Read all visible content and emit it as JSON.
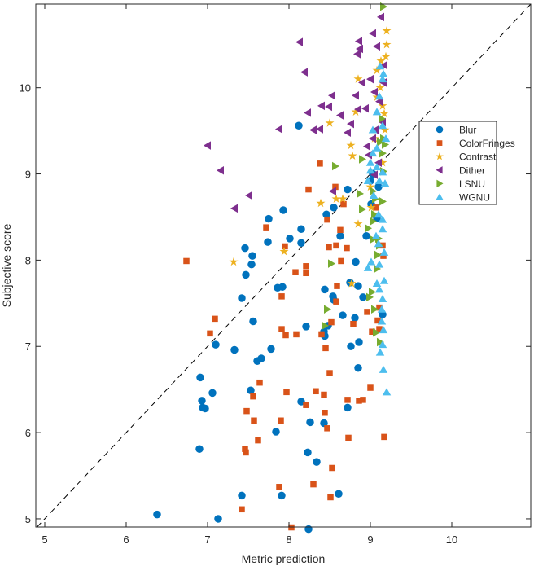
{
  "chart_data": {
    "type": "scatter",
    "title": "",
    "xlabel": "Metric prediction",
    "ylabel": "Subjective score",
    "xlim": [
      4.89,
      10.97
    ],
    "ylim": [
      4.905,
      10.97
    ],
    "xticks": [
      5,
      6,
      7,
      8,
      9,
      10
    ],
    "yticks": [
      5,
      6,
      7,
      8,
      9,
      10
    ],
    "grid": false,
    "legend_position": "right",
    "reference_line": {
      "type": "identity",
      "style": "dashed",
      "color": "#000000"
    },
    "series": [
      {
        "name": "Blur",
        "marker": "circle",
        "color": "#0072BD",
        "points": [
          [
            6.38,
            5.05
          ],
          [
            7.13,
            5.0
          ],
          [
            7.42,
            5.27
          ],
          [
            7.91,
            5.27
          ],
          [
            8.24,
            4.88
          ],
          [
            8.61,
            5.29
          ],
          [
            6.9,
            5.81
          ],
          [
            7.84,
            6.01
          ],
          [
            8.23,
            5.77
          ],
          [
            8.34,
            5.66
          ],
          [
            6.93,
            6.37
          ],
          [
            6.94,
            6.29
          ],
          [
            6.97,
            6.28
          ],
          [
            7.06,
            6.46
          ],
          [
            6.91,
            6.64
          ],
          [
            7.33,
            6.96
          ],
          [
            7.1,
            7.02
          ],
          [
            7.61,
            6.83
          ],
          [
            7.66,
            6.86
          ],
          [
            7.78,
            6.97
          ],
          [
            7.53,
            6.49
          ],
          [
            8.15,
            6.36
          ],
          [
            8.26,
            6.12
          ],
          [
            8.43,
            6.11
          ],
          [
            8.72,
            6.29
          ],
          [
            8.85,
            6.75
          ],
          [
            8.86,
            7.05
          ],
          [
            7.42,
            7.56
          ],
          [
            7.56,
            7.29
          ],
          [
            7.47,
            7.83
          ],
          [
            7.54,
            7.95
          ],
          [
            7.55,
            8.05
          ],
          [
            7.46,
            8.14
          ],
          [
            7.74,
            8.21
          ],
          [
            7.75,
            8.48
          ],
          [
            7.93,
            8.58
          ],
          [
            8.01,
            8.25
          ],
          [
            8.15,
            8.36
          ],
          [
            8.15,
            8.2
          ],
          [
            7.86,
            7.68
          ],
          [
            7.92,
            7.69
          ],
          [
            8.12,
            9.56
          ],
          [
            8.21,
            7.23
          ],
          [
            8.43,
            7.17
          ],
          [
            8.44,
            7.12
          ],
          [
            8.48,
            7.24
          ],
          [
            8.44,
            7.66
          ],
          [
            8.54,
            7.58
          ],
          [
            8.55,
            7.54
          ],
          [
            8.46,
            8.53
          ],
          [
            8.55,
            8.61
          ],
          [
            8.63,
            8.28
          ],
          [
            8.66,
            7.36
          ],
          [
            8.75,
            7.74
          ],
          [
            8.72,
            8.82
          ],
          [
            8.76,
            7.0
          ],
          [
            8.81,
            7.33
          ],
          [
            8.82,
            7.98
          ],
          [
            8.85,
            7.7
          ],
          [
            8.91,
            7.57
          ],
          [
            8.95,
            8.28
          ],
          [
            9.01,
            8.65
          ],
          [
            9.03,
            9.0
          ],
          [
            9.0,
            8.92
          ],
          [
            9.15,
            7.37
          ],
          [
            9.08,
            8.49
          ],
          [
            9.1,
            8.85
          ]
        ]
      },
      {
        "name": "ColorFringes",
        "marker": "square",
        "color": "#D95319",
        "points": [
          [
            6.74,
            7.99
          ],
          [
            7.09,
            7.32
          ],
          [
            7.03,
            7.15
          ],
          [
            7.46,
            5.81
          ],
          [
            7.47,
            5.77
          ],
          [
            7.42,
            5.11
          ],
          [
            7.48,
            6.25
          ],
          [
            7.57,
            6.14
          ],
          [
            7.62,
            5.91
          ],
          [
            7.64,
            6.58
          ],
          [
            7.56,
            6.42
          ],
          [
            7.72,
            8.38
          ],
          [
            7.91,
            7.2
          ],
          [
            7.91,
            7.58
          ],
          [
            7.9,
            6.14
          ],
          [
            7.88,
            5.37
          ],
          [
            8.03,
            4.9
          ],
          [
            7.95,
            8.16
          ],
          [
            7.97,
            6.47
          ],
          [
            7.96,
            7.13
          ],
          [
            8.09,
            7.14
          ],
          [
            8.08,
            7.86
          ],
          [
            8.21,
            7.85
          ],
          [
            8.21,
            7.93
          ],
          [
            8.24,
            8.82
          ],
          [
            8.21,
            6.32
          ],
          [
            8.33,
            6.48
          ],
          [
            8.3,
            5.4
          ],
          [
            8.38,
            9.12
          ],
          [
            8.4,
            7.14
          ],
          [
            8.45,
            6.98
          ],
          [
            8.43,
            6.44
          ],
          [
            8.44,
            6.23
          ],
          [
            8.47,
            6.05
          ],
          [
            8.5,
            6.69
          ],
          [
            8.49,
            8.15
          ],
          [
            8.52,
            7.28
          ],
          [
            8.47,
            8.47
          ],
          [
            8.53,
            5.59
          ],
          [
            8.51,
            5.25
          ],
          [
            8.58,
            8.17
          ],
          [
            8.59,
            7.7
          ],
          [
            8.58,
            7.52
          ],
          [
            8.57,
            8.85
          ],
          [
            8.64,
            7.99
          ],
          [
            8.63,
            8.35
          ],
          [
            8.67,
            8.65
          ],
          [
            8.71,
            8.14
          ],
          [
            8.73,
            5.94
          ],
          [
            8.72,
            6.38
          ],
          [
            8.79,
            7.26
          ],
          [
            8.86,
            6.37
          ],
          [
            8.91,
            6.38
          ],
          [
            8.96,
            7.4
          ],
          [
            9.0,
            6.52
          ],
          [
            9.02,
            7.17
          ],
          [
            9.09,
            7.3
          ],
          [
            9.11,
            7.45
          ],
          [
            9.11,
            7.2
          ],
          [
            9.16,
            8.05
          ],
          [
            9.17,
            5.95
          ],
          [
            9.15,
            8.17
          ],
          [
            9.07,
            8.61
          ]
        ]
      },
      {
        "name": "Contrast",
        "marker": "star",
        "color": "#EDB120",
        "points": [
          [
            7.32,
            7.98
          ],
          [
            7.94,
            8.1
          ],
          [
            8.39,
            8.66
          ],
          [
            8.5,
            9.59
          ],
          [
            8.58,
            8.71
          ],
          [
            8.66,
            8.71
          ],
          [
            8.76,
            9.33
          ],
          [
            8.78,
            9.21
          ],
          [
            8.82,
            9.72
          ],
          [
            8.85,
            10.1
          ],
          [
            8.85,
            8.42
          ],
          [
            8.77,
            7.73
          ],
          [
            9.05,
            9.41
          ],
          [
            9.08,
            10.2
          ],
          [
            9.08,
            9.89
          ],
          [
            9.13,
            10.31
          ],
          [
            9.2,
            10.66
          ],
          [
            9.15,
            9.79
          ],
          [
            9.19,
            10.36
          ],
          [
            9.2,
            10.5
          ],
          [
            9.12,
            10.0
          ],
          [
            9.0,
            8.85
          ],
          [
            9.01,
            8.61
          ],
          [
            9.17,
            9.7
          ],
          [
            9.18,
            9.51
          ],
          [
            9.15,
            9.13
          ]
        ]
      },
      {
        "name": "Dither",
        "marker": "triangle-left",
        "color": "#7E2F8E",
        "points": [
          [
            7.0,
            9.33
          ],
          [
            7.16,
            9.04
          ],
          [
            7.51,
            8.75
          ],
          [
            7.33,
            8.6
          ],
          [
            7.88,
            9.52
          ],
          [
            8.13,
            10.53
          ],
          [
            8.19,
            10.18
          ],
          [
            8.23,
            9.71
          ],
          [
            8.3,
            9.51
          ],
          [
            8.38,
            9.52
          ],
          [
            8.4,
            9.79
          ],
          [
            8.49,
            9.78
          ],
          [
            8.54,
            8.8
          ],
          [
            8.53,
            9.91
          ],
          [
            8.63,
            9.68
          ],
          [
            8.72,
            9.48
          ],
          [
            8.76,
            9.58
          ],
          [
            8.84,
            10.39
          ],
          [
            8.87,
            10.45
          ],
          [
            8.86,
            10.54
          ],
          [
            8.82,
            9.91
          ],
          [
            8.85,
            9.75
          ],
          [
            8.9,
            10.06
          ],
          [
            8.94,
            9.76
          ],
          [
            8.96,
            9.32
          ],
          [
            9.0,
            10.1
          ],
          [
            9.03,
            10.63
          ],
          [
            9.08,
            10.48
          ],
          [
            9.13,
            10.82
          ],
          [
            9.05,
            9.95
          ],
          [
            9.11,
            9.84
          ],
          [
            9.15,
            9.6
          ],
          [
            9.17,
            10.26
          ],
          [
            9.1,
            9.13
          ],
          [
            8.98,
            9.22
          ],
          [
            9.03,
            9.41
          ],
          [
            9.05,
            8.99
          ],
          [
            9.06,
            9.51
          ],
          [
            9.16,
            10.06
          ]
        ]
      },
      {
        "name": "LSNU",
        "marker": "triangle-right",
        "color": "#77AC30",
        "points": [
          [
            9.16,
            10.94
          ],
          [
            8.52,
            7.96
          ],
          [
            8.57,
            9.09
          ],
          [
            8.47,
            7.43
          ],
          [
            8.44,
            7.24
          ],
          [
            8.9,
            9.17
          ],
          [
            8.87,
            8.77
          ],
          [
            8.9,
            8.59
          ],
          [
            9.03,
            8.8
          ],
          [
            9.05,
            8.53
          ],
          [
            9.03,
            8.45
          ],
          [
            9.03,
            8.24
          ],
          [
            9.08,
            7.9
          ],
          [
            9.02,
            7.63
          ],
          [
            9.05,
            7.43
          ],
          [
            9.07,
            7.16
          ],
          [
            9.12,
            7.05
          ],
          [
            9.09,
            8.06
          ],
          [
            9.1,
            8.25
          ],
          [
            9.11,
            8.17
          ],
          [
            9.14,
            9.64
          ],
          [
            9.16,
            9.41
          ],
          [
            9.12,
            9.37
          ],
          [
            9.18,
            9.34
          ],
          [
            9.15,
            9.24
          ],
          [
            9.16,
            9.03
          ],
          [
            8.97,
            8.37
          ],
          [
            8.99,
            7.57
          ],
          [
            9.15,
            8.68
          ],
          [
            9.06,
            8.71
          ]
        ]
      },
      {
        "name": "WGNU",
        "marker": "triangle-up",
        "color": "#4DBEEE",
        "points": [
          [
            9.2,
            6.47
          ],
          [
            9.16,
            6.73
          ],
          [
            9.15,
            7.02
          ],
          [
            9.12,
            6.93
          ],
          [
            9.16,
            7.19
          ],
          [
            9.14,
            7.29
          ],
          [
            9.17,
            7.76
          ],
          [
            9.15,
            7.55
          ],
          [
            9.14,
            7.43
          ],
          [
            9.11,
            7.66
          ],
          [
            9.11,
            7.95
          ],
          [
            9.01,
            7.98
          ],
          [
            9.08,
            7.73
          ],
          [
            8.97,
            7.91
          ],
          [
            9.1,
            8.19
          ],
          [
            9.07,
            8.28
          ],
          [
            9.17,
            8.09
          ],
          [
            9.15,
            8.36
          ],
          [
            9.1,
            8.53
          ],
          [
            9.04,
            8.75
          ],
          [
            9.11,
            8.92
          ],
          [
            9.15,
            9.02
          ],
          [
            9.08,
            9.08
          ],
          [
            9.0,
            9.13
          ],
          [
            8.97,
            8.92
          ],
          [
            9.03,
            9.24
          ],
          [
            9.08,
            9.3
          ],
          [
            9.19,
            9.41
          ],
          [
            9.15,
            9.56
          ],
          [
            9.03,
            9.51
          ],
          [
            9.08,
            9.72
          ],
          [
            9.11,
            9.9
          ],
          [
            9.15,
            10.1
          ],
          [
            9.16,
            10.16
          ],
          [
            9.12,
            10.25
          ],
          [
            9.18,
            8.89
          ],
          [
            9.15,
            8.47
          ],
          [
            9.0,
            9.04
          ]
        ]
      }
    ]
  }
}
